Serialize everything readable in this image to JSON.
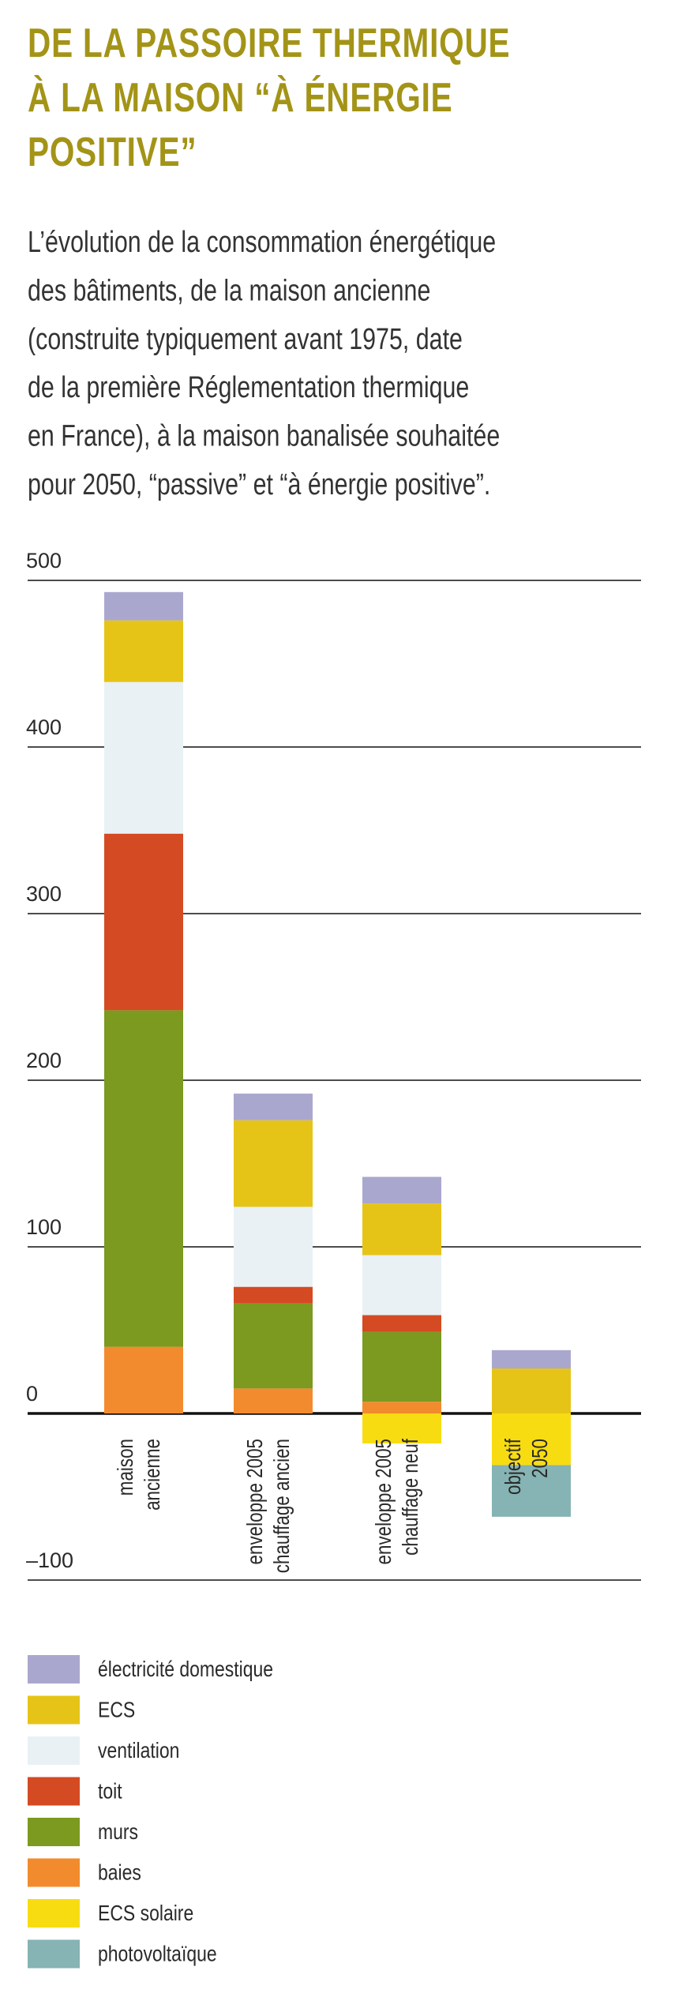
{
  "chart_data": {
    "type": "stacked-bar",
    "title": [
      "DE LA PASSOIRE THERMIQUE",
      "À LA MAISON “À ÉNERGIE",
      "POSITIVE”"
    ],
    "subtitle": [
      "L’évolution de la consommation énergétique",
      "des bâtiments, de la maison ancienne",
      "(construite typiquement avant 1975, date",
      "de la première Réglementation thermique",
      "en France), à la maison banalisée souhaitée",
      "pour 2050, “passive” et “à énergie positive”."
    ],
    "categories": [
      [
        "maison",
        "ancienne"
      ],
      [
        "enveloppe 2005",
        "chauffage ancien"
      ],
      [
        "enveloppe 2005",
        "chauffage neuf"
      ],
      [
        "objectif",
        "2050"
      ]
    ],
    "series": [
      {
        "name": "électricité domestique",
        "color": "#aaa7cf",
        "values": [
          17,
          16,
          16,
          11
        ]
      },
      {
        "name": "ECS",
        "color": "#e6c417",
        "values": [
          37,
          52,
          31,
          27
        ]
      },
      {
        "name": "ventilation",
        "color": "#e9f1f5",
        "values": [
          91,
          48,
          36,
          null
        ]
      },
      {
        "name": "toit",
        "color": "#d44a22",
        "values": [
          106,
          10,
          10,
          null
        ]
      },
      {
        "name": "murs",
        "color": "#7b9a1f",
        "values": [
          202,
          51,
          42,
          null
        ]
      },
      {
        "name": "baies",
        "color": "#f28b2d",
        "values": [
          40,
          15,
          7,
          null
        ]
      },
      {
        "name": "ECS solaire",
        "color": "#f8dc12",
        "values": [
          null,
          null,
          -18,
          -31
        ]
      },
      {
        "name": "photovoltaïque",
        "color": "#86b3b3",
        "values": [
          null,
          null,
          null,
          -31
        ]
      }
    ],
    "ylim": [
      -100,
      500
    ],
    "yticks": [
      {
        "value": -100,
        "label": "–100"
      },
      0,
      100,
      200,
      300,
      400,
      500
    ],
    "grid": true
  }
}
